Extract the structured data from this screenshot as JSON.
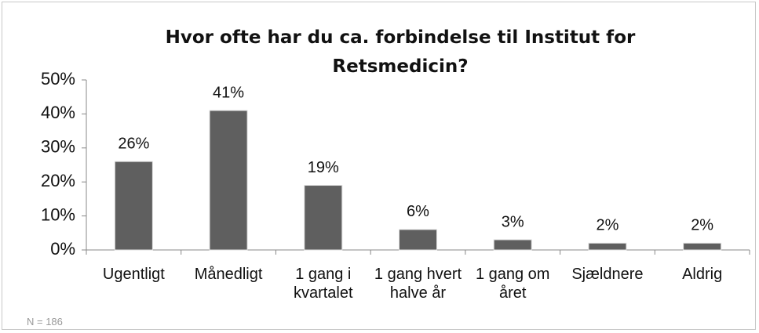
{
  "chart_data": {
    "type": "bar",
    "title": "Hvor ofte har du ca. forbindelse til Institut for Retsmedicin?",
    "categories": [
      "Ugentligt",
      "Månedligt",
      "1 gang i kvartalet",
      "1 gang hvert halve år",
      "1 gang om året",
      "Sjældnere",
      "Aldrig"
    ],
    "values": [
      26,
      41,
      19,
      6,
      3,
      2,
      2
    ],
    "value_labels": [
      "26%",
      "41%",
      "19%",
      "6%",
      "3%",
      "2%",
      "2%"
    ],
    "color": "#5f5f5f",
    "ylim": [
      0,
      50
    ],
    "yticks": [
      {
        "value": 0,
        "label": "0%"
      },
      {
        "value": 10,
        "label": "10%"
      },
      {
        "value": 20,
        "label": "20%"
      },
      {
        "value": 30,
        "label": "30%"
      },
      {
        "value": 40,
        "label": "40%"
      },
      {
        "value": 50,
        "label": "50%"
      }
    ],
    "note": "N = 186"
  }
}
